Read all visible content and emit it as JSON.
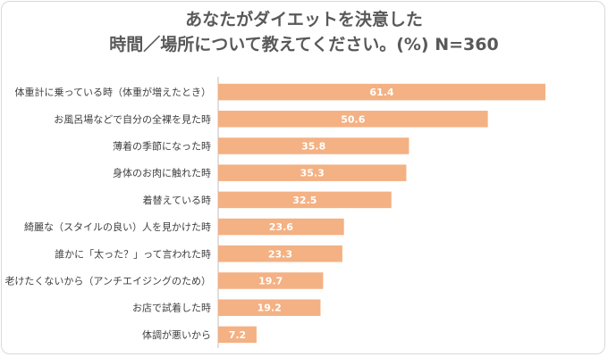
{
  "title_line1": "あなたがダイエットを決意した",
  "title_line2": "時間／場所について教えてください。(%)  N=360",
  "colors": {
    "bar": "#f4b183",
    "axis": "#bfbfbf",
    "label": "#404040",
    "value": "#ffffff"
  },
  "chart_data": {
    "type": "bar",
    "orientation": "horizontal",
    "title": "あなたがダイエットを決意した時間／場所について教えてください。(%)  N=360",
    "xlim": [
      0,
      100
    ],
    "grid": false,
    "categories": [
      "体重計に乗っている時（体重が増えたとき）",
      "お風呂場などで自分の全裸を見た時",
      "薄着の季節になった時",
      "身体のお肉に触れた時",
      "着替えている時",
      "綺麗な（スタイルの良い）人を見かけた時",
      "誰かに「太った？」って言われた時",
      "老けたくないから（アンチエイジングのため）",
      "お店で試着した時",
      "体調が悪いから"
    ],
    "values": [
      61.4,
      50.6,
      35.8,
      35.3,
      32.5,
      23.6,
      23.3,
      19.7,
      19.2,
      7.2
    ],
    "value_labels": [
      "61.4",
      "50.6",
      "35.8",
      "35.3",
      "32.5",
      "23.6",
      "23.3",
      "19.7",
      "19.2",
      "7.2"
    ]
  }
}
